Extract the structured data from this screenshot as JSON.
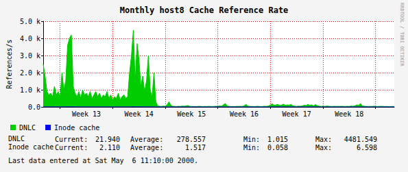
{
  "chart_data": {
    "type": "area",
    "title": "Monthly host8 Cache Reference Rate",
    "y_label": "References/s",
    "categories": [
      null,
      null,
      null,
      null,
      null,
      null,
      null,
      null,
      null,
      null,
      null,
      null,
      null,
      null,
      null,
      null,
      null,
      null,
      null,
      null,
      null,
      null,
      null,
      "Week 13",
      null,
      null,
      null,
      null,
      null,
      null,
      null,
      null,
      null,
      null,
      null,
      null,
      null,
      null,
      null,
      null,
      null,
      null,
      null,
      null,
      null,
      null,
      null,
      null,
      null,
      null,
      null,
      "Week 14",
      null,
      null,
      null,
      null,
      null,
      null,
      null,
      null,
      null,
      null,
      null,
      null,
      null,
      null,
      null,
      null,
      null,
      null,
      null,
      null,
      null,
      null,
      null,
      null,
      null,
      null,
      null,
      "Week 15",
      null,
      null,
      null,
      null,
      null,
      null,
      null,
      null,
      null,
      null,
      null,
      null,
      null,
      null,
      null,
      null,
      null,
      null,
      null,
      null,
      null,
      null,
      null,
      null,
      null,
      null,
      null,
      "Week 16",
      null,
      null,
      null,
      null,
      null,
      null,
      null,
      null,
      null,
      null,
      null,
      null,
      null,
      null,
      null,
      null,
      null,
      null,
      null,
      null,
      null,
      null,
      null,
      null,
      null,
      null,
      null,
      "Week 17",
      null,
      null,
      null,
      null,
      null,
      null,
      null,
      null,
      null,
      null,
      null,
      null,
      null,
      null,
      null,
      null,
      null,
      null,
      null,
      null,
      null,
      null,
      null,
      null,
      null,
      null,
      null,
      "Week 18",
      null,
      null,
      null,
      null,
      null,
      null,
      null,
      null,
      null,
      null,
      null,
      null,
      null,
      null,
      null,
      null,
      null,
      null,
      null,
      null,
      null,
      null,
      null,
      null
    ],
    "series": [
      {
        "name": "DNLC",
        "color": "#00cc00",
        "values": [
          2500,
          1800,
          900,
          700,
          800,
          600,
          1200,
          700,
          900,
          600,
          2000,
          1000,
          1500,
          3600,
          4000,
          4200,
          1200,
          800,
          600,
          900,
          500,
          1000,
          700,
          800,
          600,
          900,
          500,
          700,
          900,
          600,
          800,
          500,
          700,
          600,
          900,
          500,
          700,
          400,
          600,
          500,
          800,
          400,
          600,
          700,
          500,
          600,
          2000,
          3000,
          4480,
          1500,
          3700,
          2800,
          1200,
          1800,
          900,
          1500,
          3000,
          1000,
          600,
          2000,
          300,
          60,
          40,
          30,
          50,
          40,
          120,
          300,
          100,
          40,
          30,
          20,
          40,
          30,
          50,
          40,
          60,
          80,
          40,
          30,
          20,
          30,
          25,
          40,
          30,
          20,
          30,
          25,
          35,
          30,
          20,
          30,
          40,
          30,
          60,
          40,
          120,
          200,
          60,
          30,
          25,
          30,
          20,
          35,
          30,
          40,
          30,
          60,
          150,
          50,
          30,
          20,
          30,
          25,
          40,
          30,
          20,
          30,
          40,
          30,
          60,
          100,
          180,
          90,
          120,
          150,
          80,
          110,
          160,
          90,
          120,
          100,
          150,
          60,
          40,
          30,
          50,
          40,
          60,
          100,
          80,
          150,
          90,
          120,
          60,
          140,
          70,
          50,
          30,
          40,
          30,
          50,
          40,
          30,
          25,
          40,
          30,
          35,
          30,
          40,
          30,
          25,
          40,
          30,
          50,
          40,
          60,
          120,
          80,
          200,
          60,
          40,
          30,
          25,
          35,
          30,
          40,
          30,
          25,
          30,
          35,
          30,
          25,
          30,
          20,
          25,
          30,
          21.94
        ]
      },
      {
        "name": "Inode cache",
        "color": "#0000ff",
        "values": [
          3.5,
          2.8,
          2.1,
          2.4,
          1.9,
          2.2,
          3.1,
          2.0,
          2.3,
          1.8,
          2.6,
          2.1,
          3.8,
          4.2,
          4.6,
          5.1,
          2.4,
          1.9,
          2.0,
          2.2,
          1.8,
          2.3,
          2.0,
          1.9,
          2.1,
          1.7,
          2.2,
          1.9,
          2.4,
          1.8,
          2.0,
          1.7,
          2.1,
          1.8,
          2.2,
          1.6,
          1.9,
          1.5,
          1.8,
          1.7,
          2.0,
          1.6,
          1.8,
          1.9,
          1.7,
          1.8,
          3.2,
          4.1,
          6.6,
          2.5,
          4.8,
          3.9,
          2.2,
          2.9,
          1.9,
          2.6,
          4.0,
          2.1,
          1.6,
          3.0,
          0.9,
          0.6,
          0.5,
          0.4,
          0.6,
          0.5,
          0.8,
          1.2,
          0.7,
          0.5,
          0.4,
          0.3,
          0.5,
          0.4,
          0.6,
          0.5,
          0.7,
          0.9,
          0.5,
          0.4,
          0.3,
          0.4,
          0.3,
          0.5,
          0.4,
          0.3,
          0.4,
          0.3,
          0.5,
          0.4,
          0.3,
          0.4,
          0.5,
          0.4,
          0.7,
          0.5,
          1.1,
          1.6,
          0.8,
          0.4,
          0.3,
          0.4,
          0.3,
          0.5,
          0.4,
          0.5,
          0.4,
          0.8,
          1.4,
          0.6,
          0.4,
          0.3,
          0.4,
          0.3,
          0.5,
          0.4,
          0.3,
          0.4,
          0.5,
          0.4,
          0.7,
          1.0,
          1.5,
          0.9,
          1.2,
          1.3,
          0.8,
          1.0,
          1.4,
          0.9,
          1.1,
          0.9,
          1.3,
          0.6,
          0.5,
          0.4,
          0.6,
          0.5,
          0.7,
          1.0,
          0.8,
          1.3,
          0.9,
          1.1,
          0.6,
          1.2,
          0.7,
          0.5,
          0.4,
          0.5,
          0.4,
          0.6,
          0.5,
          0.4,
          0.3,
          0.5,
          0.4,
          0.5,
          0.4,
          0.5,
          0.4,
          0.3,
          0.5,
          0.4,
          0.6,
          0.5,
          0.7,
          1.1,
          0.8,
          1.6,
          0.7,
          0.5,
          0.4,
          0.3,
          0.5,
          0.4,
          0.5,
          0.4,
          0.3,
          0.4,
          0.5,
          0.4,
          0.3,
          0.4,
          0.3,
          0.4,
          0.6,
          2.11
        ]
      }
    ],
    "ylim": [
      0,
      5000
    ],
    "yticks": [
      {
        "value": 0,
        "label": "0.0"
      },
      {
        "value": 1000,
        "label": "1.0 k"
      },
      {
        "value": 2000,
        "label": "2.0 k"
      },
      {
        "value": 3000,
        "label": "3.0 k"
      },
      {
        "value": 4000,
        "label": "4.0 k"
      },
      {
        "value": 5000,
        "label": "5.0 k"
      }
    ],
    "grid": true,
    "legend": "bottom-left",
    "stats": {
      "columns": [
        "Current:",
        "Average:",
        "Min:",
        "Max:"
      ],
      "rows": [
        {
          "name": "DNLC",
          "values": [
            "21.940",
            "278.557",
            "1.015",
            "4481.549"
          ]
        },
        {
          "name": "Inode cache",
          "values": [
            "2.110",
            "1.517",
            "0.058",
            "6.598"
          ]
        }
      ]
    },
    "footer": "Last data entered at Sat May  6 11:10:00 2000.",
    "watermark": "RRDTOOL / TOBI OETIKER"
  }
}
